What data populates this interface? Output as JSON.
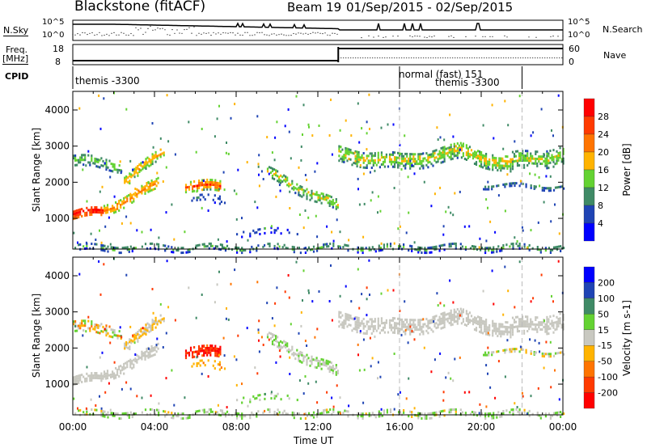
{
  "header": {
    "title": "Blackstone (fitACF)",
    "beam": "Beam 19",
    "dates": "01/Sep/2015 - 02/Sep/2015"
  },
  "nsky": {
    "label": "N.Sky",
    "left_ticks": [
      "10^5",
      "10^0"
    ],
    "right_ticks": [
      "10^5",
      "10^0"
    ],
    "right_label": "N.Search"
  },
  "freq": {
    "label1": "Freq.",
    "label2": "[MHz]",
    "left_ticks": [
      "18",
      "8"
    ],
    "right_ticks": [
      "60",
      "0"
    ],
    "right_label": "Nave",
    "freq_segments": [
      {
        "t0": 0,
        "t1": 13,
        "mhz": 10.5
      },
      {
        "t0": 13,
        "t1": 24,
        "mhz": 18
      }
    ],
    "nave_segments": [
      {
        "t0": 13,
        "t1": 24,
        "nave": 20
      }
    ]
  },
  "cpid": {
    "label": "CPID",
    "segments": [
      {
        "t0": 0,
        "t1": 16,
        "name": "themis -3300"
      },
      {
        "t0": 16,
        "t1": 22,
        "name": "normal (fast) 151"
      },
      {
        "t0": 22,
        "t1": 24,
        "name": "themis -3300"
      }
    ]
  },
  "chart_data": [
    {
      "type": "heatmap",
      "title": "Power",
      "ylabel": "Slant Range [km]",
      "xlabel": "Time UT",
      "ylim": [
        150,
        4515
      ],
      "xlim": [
        0,
        24
      ],
      "x_ticks": [
        "00:00",
        "04:00",
        "08:00",
        "12:00",
        "16:00",
        "20:00",
        "00:00"
      ],
      "y_ticks": [
        "1000",
        "2000",
        "3000",
        "4000"
      ],
      "colorbar": {
        "label": "Power [dB]",
        "ticks": [
          "28",
          "24",
          "20",
          "16",
          "12",
          "8",
          "4"
        ],
        "colors": [
          "#ff0000",
          "#ff3a00",
          "#ff7400",
          "#ffb300",
          "#64d232",
          "#3f8a66",
          "#1f44b4",
          "#0000ff"
        ]
      }
    },
    {
      "type": "heatmap",
      "title": "Velocity",
      "ylabel": "Slant Range [km]",
      "xlabel": "Time UT",
      "ylim": [
        150,
        4515
      ],
      "xlim": [
        0,
        24
      ],
      "x_ticks": [
        "00:00",
        "04:00",
        "08:00",
        "12:00",
        "16:00",
        "20:00",
        "00:00"
      ],
      "y_ticks": [
        "1000",
        "2000",
        "3000",
        "4000"
      ],
      "colorbar": {
        "label": "Velocity [m s-1]",
        "ticks": [
          "200",
          "100",
          "50",
          "15",
          "-15",
          "-50",
          "-100",
          "-200"
        ],
        "colors": [
          "#0000ff",
          "#1f44b4",
          "#3f8a66",
          "#64d232",
          "#c8c8c0",
          "#ffb300",
          "#ff7400",
          "#ff3a00",
          "#ff0000"
        ]
      }
    }
  ],
  "echo_regions": [
    {
      "t0": 0,
      "t1": 1.5,
      "r0": 1150,
      "r1": 1250,
      "w": 130,
      "p": [
        20,
        32
      ],
      "v": [
        -14,
        14
      ],
      "d": 0.95
    },
    {
      "t0": 1.5,
      "t1": 4.2,
      "r0": 1250,
      "r1": 2000,
      "w": 140,
      "p": [
        12,
        24
      ],
      "v": [
        -14,
        14
      ],
      "d": 0.85
    },
    {
      "t0": 0,
      "t1": 2.4,
      "r0": 2650,
      "r1": 2500,
      "w": 150,
      "p": [
        6,
        16
      ],
      "v": [
        -80,
        60
      ],
      "d": 0.7
    },
    {
      "t0": 2.5,
      "t1": 4.5,
      "r0": 2100,
      "r1": 2900,
      "w": 160,
      "p": [
        10,
        22
      ],
      "v": [
        -40,
        14
      ],
      "d": 0.8
    },
    {
      "t0": 5.5,
      "t1": 7.2,
      "r0": 1950,
      "r1": 1900,
      "w": 140,
      "p": [
        10,
        30
      ],
      "v": [
        -260,
        -90
      ],
      "d": 0.85
    },
    {
      "t0": 5.8,
      "t1": 7.5,
      "r0": 1600,
      "r1": 1500,
      "w": 120,
      "p": [
        2,
        10
      ],
      "v": [
        -60,
        -15
      ],
      "d": 0.35
    },
    {
      "t0": 9.5,
      "t1": 13,
      "r0": 2300,
      "r1": 1350,
      "w": 150,
      "p": [
        6,
        20
      ],
      "v": [
        -14,
        30
      ],
      "d": 0.75
    },
    {
      "t0": 13,
      "t1": 16,
      "r0": 2800,
      "r1": 2600,
      "w": 220,
      "p": [
        6,
        20
      ],
      "v": [
        -14,
        14
      ],
      "d": 0.7
    },
    {
      "t0": 16,
      "t1": 19,
      "r0": 2600,
      "r1": 2900,
      "w": 230,
      "p": [
        6,
        20
      ],
      "v": [
        -14,
        14
      ],
      "d": 0.75
    },
    {
      "t0": 19,
      "t1": 21.5,
      "r0": 2900,
      "r1": 2500,
      "w": 230,
      "p": [
        8,
        20
      ],
      "v": [
        -14,
        14
      ],
      "d": 0.75
    },
    {
      "t0": 21.5,
      "t1": 24,
      "r0": 2600,
      "r1": 2800,
      "w": 250,
      "p": [
        6,
        18
      ],
      "v": [
        -14,
        14
      ],
      "d": 0.7
    },
    {
      "t0": 20,
      "t1": 24,
      "r0": 1950,
      "r1": 1900,
      "w": 50,
      "p": [
        4,
        12
      ],
      "v": [
        -30,
        40
      ],
      "d": 0.6
    },
    {
      "t0": 0,
      "t1": 24,
      "r0": 230,
      "r1": 230,
      "w": 90,
      "p": [
        2,
        16
      ],
      "v": [
        -20,
        40
      ],
      "d": 0.55
    },
    {
      "t0": 8,
      "t1": 11,
      "r0": 650,
      "r1": 650,
      "w": 70,
      "p": [
        2,
        8
      ],
      "v": [
        0,
        40
      ],
      "d": 0.3
    }
  ]
}
